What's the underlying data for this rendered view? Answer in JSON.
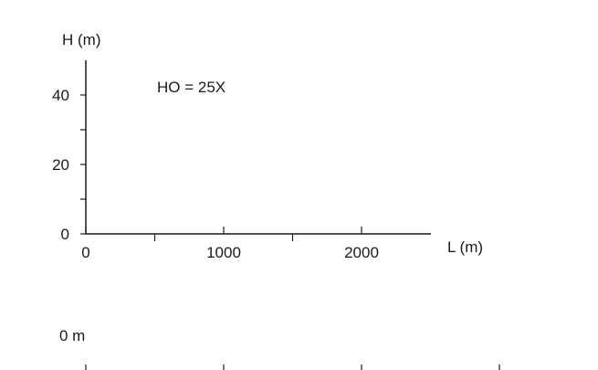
{
  "chart_data": {
    "type": "line",
    "ylabel": "H  (m)",
    "xlabel": "L  (m)",
    "annotation": "HO = 25X",
    "xlim": [
      0,
      2500
    ],
    "ylim": [
      0,
      50
    ],
    "x_ticks_major": [
      0,
      1000,
      2000
    ],
    "x_ticks_minor": [
      500,
      1500
    ],
    "x_tick_labels": [
      "0",
      "1000",
      "2000"
    ],
    "y_ticks_major": [
      0,
      20,
      40
    ],
    "y_ticks_minor": [
      10,
      30
    ],
    "y_tick_labels": [
      "0",
      "20",
      "40"
    ],
    "series": []
  },
  "bottom_scale": {
    "label": "0 m",
    "ticks": [
      0,
      1000,
      2000,
      3000
    ]
  }
}
